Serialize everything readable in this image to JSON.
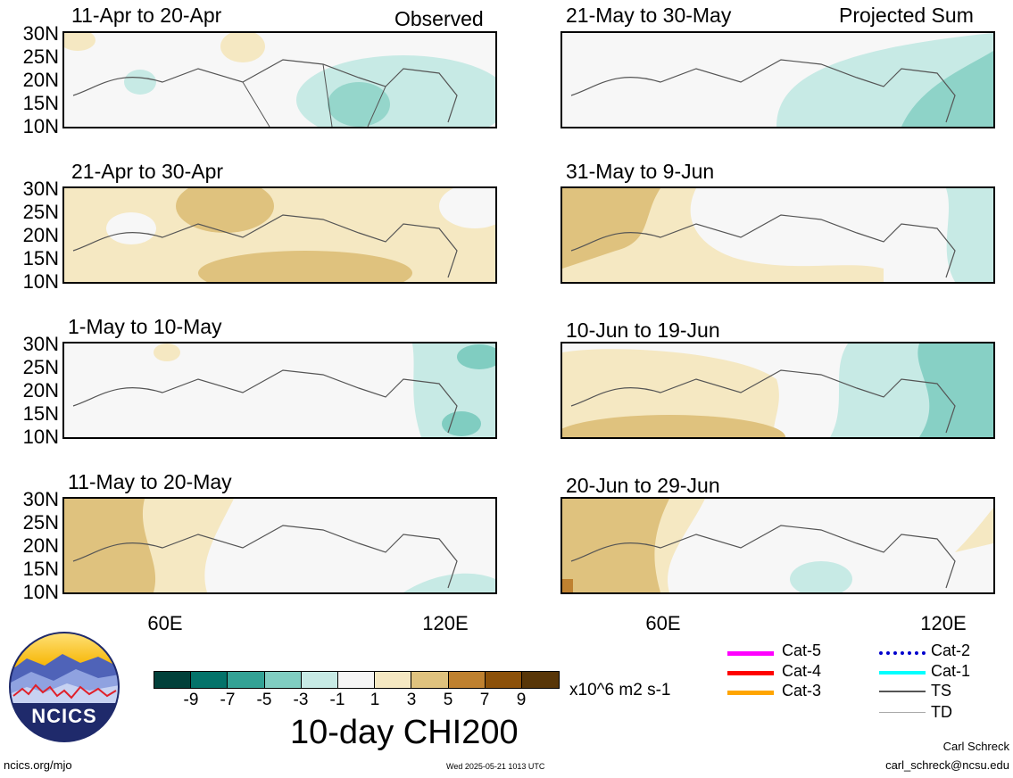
{
  "panels": [
    {
      "title": "11-Apr to 20-Apr",
      "tag": "Observed"
    },
    {
      "title": "21-Apr to 30-Apr",
      "tag": ""
    },
    {
      "title": "1-May to 10-May",
      "tag": ""
    },
    {
      "title": "11-May to 20-May",
      "tag": ""
    },
    {
      "title": "21-May to 30-May",
      "tag": "Projected Sum"
    },
    {
      "title": "31-May to 9-Jun",
      "tag": ""
    },
    {
      "title": "10-Jun to 19-Jun",
      "tag": ""
    },
    {
      "title": "20-Jun to 29-Jun",
      "tag": ""
    }
  ],
  "lat_labels": [
    "30N",
    "25N",
    "20N",
    "15N",
    "10N"
  ],
  "lon_labels": [
    "60E",
    "120E"
  ],
  "colorbar": {
    "colors": [
      "#01403a",
      "#04736a",
      "#33a295",
      "#80cdc1",
      "#c7eae5",
      "#f5f5f5",
      "#f5e8c2",
      "#dfc27e",
      "#bf8130",
      "#8c510a",
      "#583608"
    ],
    "ticks": [
      "-9",
      "-7",
      "-5",
      "-3",
      "-1",
      "1",
      "3",
      "5",
      "7",
      "9"
    ],
    "units": "x10^6 m2 s-1",
    "title": "10-day CHI200"
  },
  "legend": [
    {
      "label": "Cat-5",
      "color": "#ff00ff"
    },
    {
      "label": "Cat-4",
      "color": "#ff0000"
    },
    {
      "label": "Cat-3",
      "color": "#ffa500"
    },
    {
      "label": "Cat-2",
      "color": "#0000cd"
    },
    {
      "label": "Cat-1",
      "color": "#00ffff"
    },
    {
      "label": "TS",
      "color": "#555555"
    },
    {
      "label": "TD",
      "color": "#aaaaaa"
    }
  ],
  "logo_text": "NCICS",
  "footer": {
    "url": "ncics.org/mjo",
    "timestamp": "Wed 2025-05-21 1013 UTC",
    "author": "Carl Schreck",
    "email": "carl_schreck@ncsu.edu"
  }
}
